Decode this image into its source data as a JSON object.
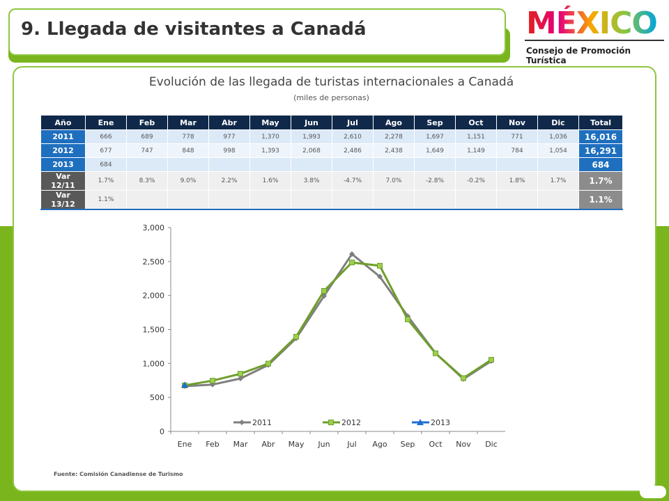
{
  "header": {
    "title": "9. Llegada de visitantes a Canadá",
    "logo": "MÉXICO",
    "logo_subtitle": "Consejo de Promoción Turística"
  },
  "table": {
    "title": "Evolución de las llegada de turistas internacionales a Canadá",
    "subtitle": "(miles de personas)",
    "columns": [
      "Año",
      "Ene",
      "Feb",
      "Mar",
      "Abr",
      "May",
      "Jun",
      "Jul",
      "Ago",
      "Sep",
      "Oct",
      "Nov",
      "Dic",
      "Total"
    ],
    "rows": [
      [
        "2011",
        "666",
        "689",
        "778",
        "977",
        "1,370",
        "1,993",
        "2,610",
        "2,278",
        "1,697",
        "1,151",
        "771",
        "1,036",
        "16,016"
      ],
      [
        "2012",
        "677",
        "747",
        "848",
        "998",
        "1,393",
        "2,068",
        "2,486",
        "2,438",
        "1,649",
        "1,149",
        "784",
        "1,054",
        "16,291"
      ],
      [
        "2013",
        "684",
        null,
        null,
        null,
        null,
        null,
        null,
        null,
        null,
        null,
        null,
        null,
        "684"
      ],
      [
        "Var 12/11",
        "1.7%",
        "8.3%",
        "9.0%",
        "2.2%",
        "1.6%",
        "3.8%",
        "-4.7%",
        "7.0%",
        "-2.8%",
        "-0.2%",
        "1.8%",
        "1.7%",
        "1.7%"
      ],
      [
        "Var 13/12",
        "1.1%",
        null,
        null,
        null,
        null,
        null,
        null,
        null,
        null,
        null,
        null,
        null,
        "1.1%"
      ]
    ]
  },
  "chart_data": {
    "type": "line",
    "categories": [
      "Ene",
      "Feb",
      "Mar",
      "Abr",
      "May",
      "Jun",
      "Jul",
      "Ago",
      "Sep",
      "Oct",
      "Nov",
      "Dic"
    ],
    "series": [
      {
        "name": "2011",
        "color": "#7f7f7f",
        "marker": "diamond",
        "values": [
          666,
          689,
          778,
          977,
          1370,
          1993,
          2610,
          2278,
          1697,
          1151,
          771,
          1036
        ]
      },
      {
        "name": "2012",
        "color": "#6e9e2b",
        "marker": "square",
        "values": [
          677,
          747,
          848,
          998,
          1393,
          2068,
          2486,
          2438,
          1649,
          1149,
          784,
          1054
        ]
      },
      {
        "name": "2013",
        "color": "#1f6fd0",
        "marker": "triangle",
        "values": [
          684,
          null,
          null,
          null,
          null,
          null,
          null,
          null,
          null,
          null,
          null,
          null
        ]
      }
    ],
    "ylim": [
      0,
      3000
    ],
    "yticks": [
      0,
      500,
      {
        "value": 1000,
        "label": "1,000"
      },
      {
        "value": 1500,
        "label": "1,500"
      },
      {
        "value": 2000,
        "label": "2,000"
      },
      {
        "value": 2500,
        "label": "2,500"
      },
      {
        "value": 3000,
        "label": "3,000"
      }
    ],
    "legend": "bottom"
  },
  "source": "Fuente: Comisión Canadiense de Turismo"
}
